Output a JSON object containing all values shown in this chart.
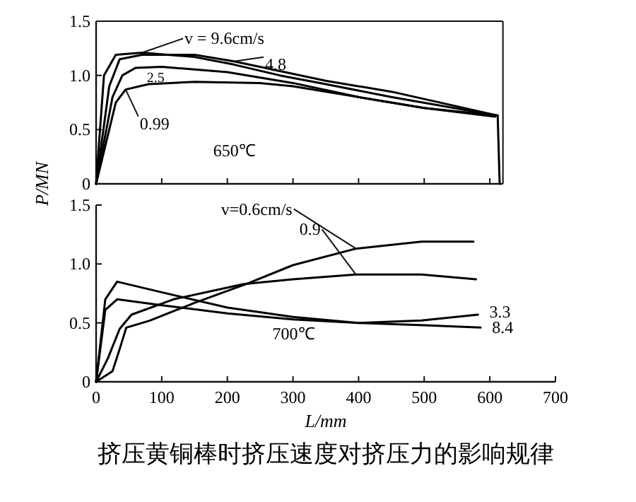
{
  "chart_data": [
    {
      "type": "line",
      "ylabel": "P/MN",
      "xlim": [
        0,
        620
      ],
      "xticks": [
        0,
        100,
        200,
        300,
        400,
        500,
        600
      ],
      "ylim": [
        0,
        1.5
      ],
      "yticks": [
        0,
        0.5,
        {
          "value": 1,
          "label": "1.0"
        },
        1.5
      ],
      "tick_labels": "y",
      "grid": false,
      "annotations": [
        "650℃"
      ],
      "series": [
        {
          "name": "v = 9.6cm/s",
          "color": "#000000",
          "x": [
            0,
            12,
            30,
            70,
            150,
            210,
            280,
            350,
            450,
            612,
            615
          ],
          "values": [
            0,
            1.0,
            1.19,
            1.21,
            1.17,
            1.1,
            1.0,
            0.92,
            0.8,
            0.63,
            0
          ]
        },
        {
          "name": "4.8",
          "color": "#000000",
          "x": [
            0,
            20,
            36,
            70,
            150,
            210,
            280,
            350,
            450,
            612
          ],
          "values": [
            0,
            0.9,
            1.15,
            1.19,
            1.19,
            1.13,
            1.04,
            0.95,
            0.85,
            0.63
          ]
        },
        {
          "name": "2.5",
          "color": "#000000",
          "x": [
            0,
            25,
            40,
            60,
            100,
            200,
            300,
            400,
            500,
            612
          ],
          "values": [
            0,
            0.8,
            1.0,
            1.07,
            1.08,
            1.03,
            0.93,
            0.8,
            0.7,
            0.63
          ]
        },
        {
          "name": "0.99",
          "color": "#000000",
          "x": [
            0,
            20,
            30,
            45,
            80,
            150,
            250,
            300,
            400,
            500,
            608
          ],
          "values": [
            0,
            0.5,
            0.75,
            0.87,
            0.92,
            0.94,
            0.93,
            0.9,
            0.8,
            0.7,
            0.62
          ]
        }
      ]
    },
    {
      "type": "line",
      "xlabel": "L/mm",
      "xlim": [
        0,
        700
      ],
      "xticks": [
        0,
        100,
        200,
        300,
        400,
        500,
        600,
        700
      ],
      "ylim": [
        0,
        1.5
      ],
      "yticks": [
        0,
        0.5,
        {
          "value": 1,
          "label": "1.0"
        },
        1.5
      ],
      "grid": false,
      "annotations": [
        "700℃",
        "挤压黄铜棒时挤压速度对挤压力的影响规律"
      ],
      "series": [
        {
          "name": "v=0.6cm/s",
          "color": "#000000",
          "x": [
            0,
            25,
            36,
            46,
            82,
            150,
            229,
            300,
            396,
            496,
            575
          ],
          "values": [
            0,
            0.09,
            0.28,
            0.46,
            0.52,
            0.67,
            0.83,
            0.99,
            1.13,
            1.19,
            1.19
          ]
        },
        {
          "name": "0.9",
          "color": "#000000",
          "x": [
            0,
            18,
            36,
            54,
            118,
            225,
            300,
            396,
            496,
            579
          ],
          "values": [
            0,
            0.2,
            0.45,
            0.57,
            0.7,
            0.83,
            0.87,
            0.91,
            0.91,
            0.87
          ]
        },
        {
          "name": "3.3",
          "color": "#000000",
          "x": [
            0,
            14,
            32,
            100,
            200,
            300,
            400,
            496,
            582
          ],
          "values": [
            0,
            0.61,
            0.7,
            0.65,
            0.58,
            0.53,
            0.5,
            0.52,
            0.57
          ]
        },
        {
          "name": "8.4",
          "color": "#000000",
          "x": [
            0,
            14,
            32,
            100,
            200,
            300,
            400,
            500,
            586
          ],
          "values": [
            0,
            0.7,
            0.85,
            0.76,
            0.63,
            0.55,
            0.5,
            0.48,
            0.46
          ]
        }
      ]
    }
  ]
}
